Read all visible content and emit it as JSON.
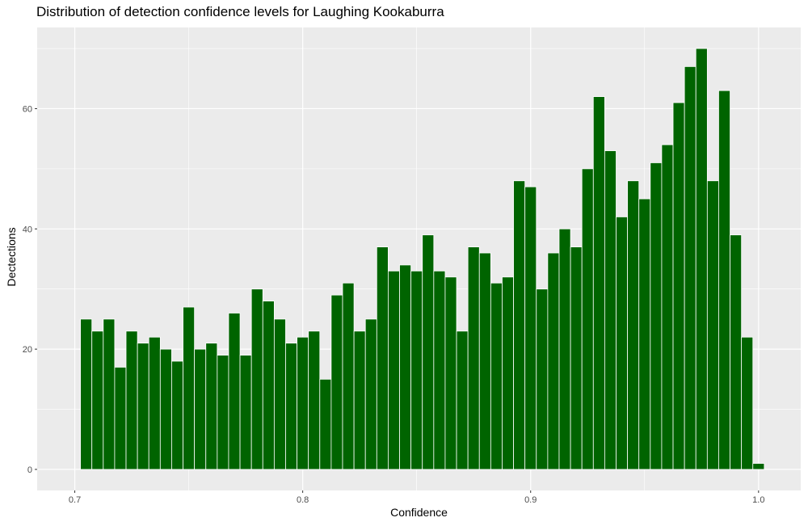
{
  "chart_data": {
    "type": "bar",
    "title": "Distribution of detection confidence levels for Laughing Kookaburra",
    "xlabel": "Confidence",
    "ylabel": "Dectections",
    "x_ticks": [
      "0.7",
      "0.8",
      "0.9",
      "1.0"
    ],
    "y_ticks": [
      "0",
      "20",
      "40",
      "60"
    ],
    "xlim": [
      0.6835,
      1.0185
    ],
    "ylim": [
      -3.5,
      73.5
    ],
    "bin_width": 0.005,
    "bin_centers": [
      0.705,
      0.71,
      0.715,
      0.72,
      0.725,
      0.73,
      0.735,
      0.74,
      0.745,
      0.75,
      0.755,
      0.76,
      0.765,
      0.77,
      0.775,
      0.78,
      0.785,
      0.79,
      0.795,
      0.8,
      0.805,
      0.81,
      0.815,
      0.82,
      0.825,
      0.83,
      0.835,
      0.84,
      0.845,
      0.85,
      0.855,
      0.86,
      0.865,
      0.87,
      0.875,
      0.88,
      0.885,
      0.89,
      0.895,
      0.9,
      0.905,
      0.91,
      0.915,
      0.92,
      0.925,
      0.93,
      0.935,
      0.94,
      0.945,
      0.95,
      0.955,
      0.96,
      0.965,
      0.97,
      0.975,
      0.98,
      0.985,
      0.99,
      0.995,
      1.0
    ],
    "values": [
      25,
      23,
      25,
      17,
      23,
      21,
      22,
      20,
      18,
      27,
      20,
      21,
      19,
      26,
      19,
      30,
      28,
      25,
      21,
      22,
      23,
      15,
      29,
      31,
      23,
      25,
      37,
      33,
      34,
      33,
      39,
      33,
      32,
      23,
      37,
      36,
      31,
      32,
      48,
      47,
      30,
      36,
      40,
      37,
      50,
      62,
      53,
      42,
      48,
      45,
      51,
      54,
      61,
      67,
      70,
      48,
      63,
      39,
      22,
      1
    ],
    "bar_color": "#006400",
    "panel_color": "#ebebeb",
    "grid": true
  }
}
